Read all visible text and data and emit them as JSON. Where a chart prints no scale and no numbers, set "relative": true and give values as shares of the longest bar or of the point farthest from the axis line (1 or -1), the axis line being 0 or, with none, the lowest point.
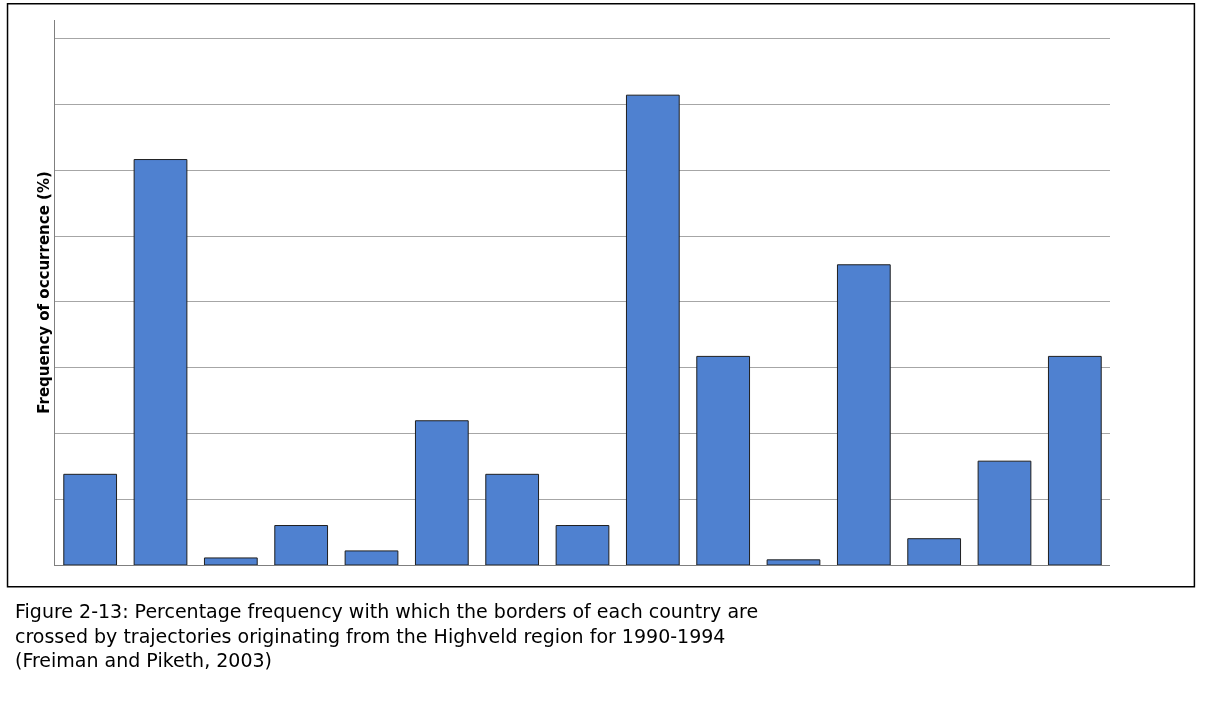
{
  "chart_data": {
    "type": "bar",
    "relative": true,
    "ylabel": "Frequency of occurrence (%)",
    "categories": [
      null,
      null,
      null,
      null,
      null,
      null,
      null,
      null,
      null,
      null,
      null,
      null,
      null,
      null,
      null
    ],
    "values": [
      0.193,
      0.863,
      0.015,
      0.084,
      0.03,
      0.307,
      0.193,
      0.084,
      1,
      0.444,
      0.011,
      0.639,
      0.056,
      0.221,
      0.444
    ],
    "color": "#4f81d0",
    "grid": "y",
    "legend": false,
    "annotations": [
      "Figure 2-13: Percentage frequency with which the borders of each country are crossed by trajectories originating from the Highveld region for 1990-1994 (Freiman and Piketh, 2003)"
    ]
  }
}
